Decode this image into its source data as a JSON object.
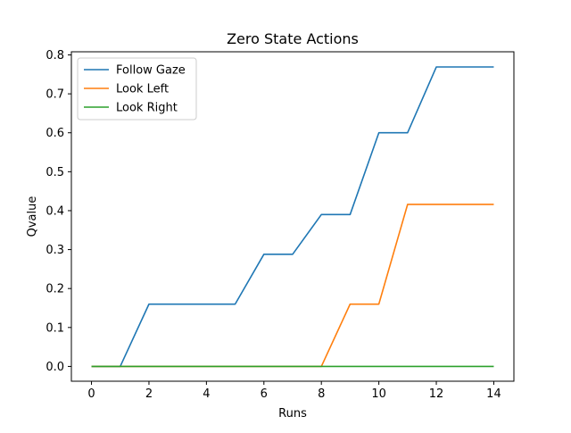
{
  "chart_data": {
    "type": "line",
    "title": "Zero State Actions",
    "xlabel": "Runs",
    "ylabel": "Qvalue",
    "xlim": [
      -0.7,
      14.7
    ],
    "ylim": [
      -0.038,
      0.808
    ],
    "xticks": [
      0,
      2,
      4,
      6,
      8,
      10,
      12,
      14
    ],
    "yticks": [
      0.0,
      0.1,
      0.2,
      0.3,
      0.4,
      0.5,
      0.6,
      0.7,
      0.8
    ],
    "x": [
      0,
      1,
      2,
      3,
      4,
      5,
      6,
      7,
      8,
      9,
      10,
      11,
      12,
      13,
      14
    ],
    "series": [
      {
        "name": "Follow Gaze",
        "color": "#1f77b4",
        "values": [
          0.0,
          0.0,
          0.16,
          0.16,
          0.16,
          0.16,
          0.288,
          0.288,
          0.39,
          0.39,
          0.6,
          0.6,
          0.769,
          0.769,
          0.769
        ]
      },
      {
        "name": "Look Left",
        "color": "#ff7f0e",
        "values": [
          0.0,
          0.0,
          0.0,
          0.0,
          0.0,
          0.0,
          0.0,
          0.0,
          0.0,
          0.16,
          0.16,
          0.416,
          0.416,
          0.416,
          0.416
        ]
      },
      {
        "name": "Look Right",
        "color": "#2ca02c",
        "values": [
          0.0,
          0.0,
          0.0,
          0.0,
          0.0,
          0.0,
          0.0,
          0.0,
          0.0,
          0.0,
          0.0,
          0.0,
          0.0,
          0.0,
          0.0
        ]
      }
    ],
    "legend_position": "top-left",
    "grid": false
  }
}
